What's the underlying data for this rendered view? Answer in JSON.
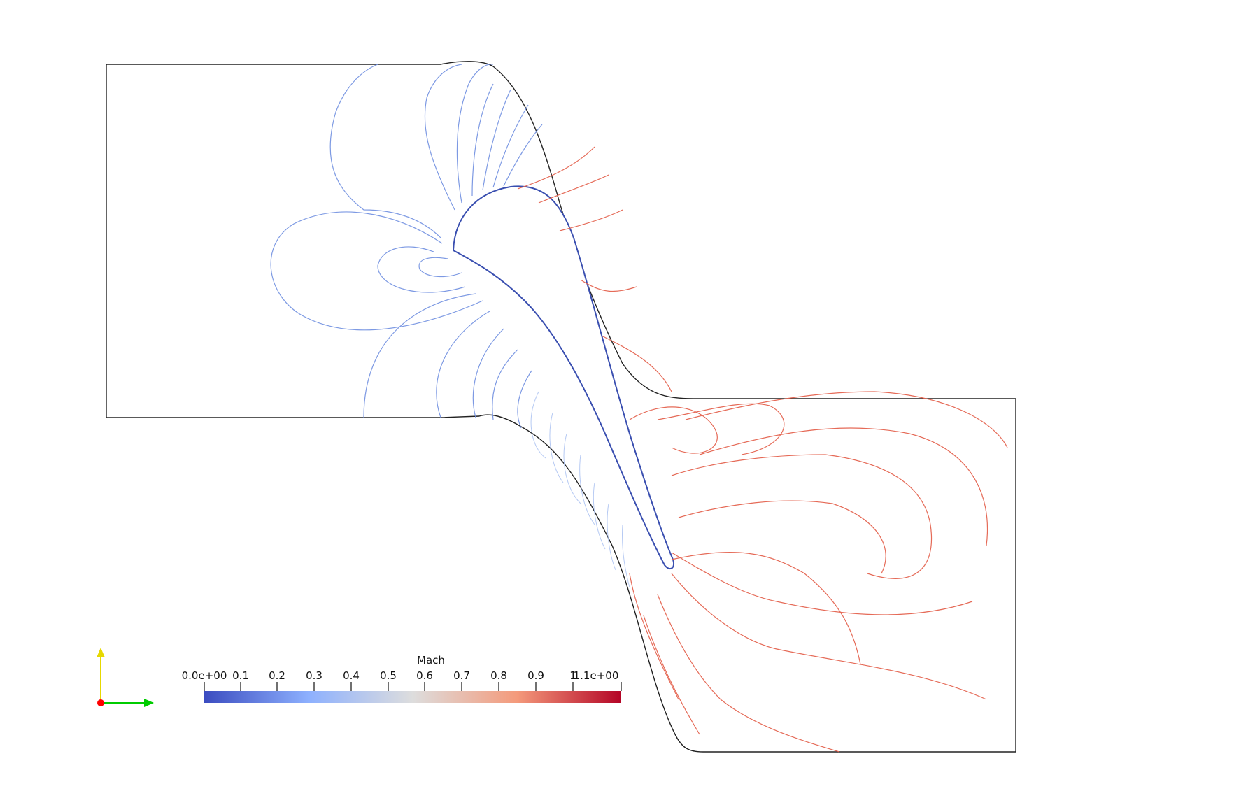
{
  "colorbar": {
    "title": "Mach",
    "tick_labels": [
      "0.0e+00",
      "0.1",
      "0.2",
      "0.3",
      "0.4",
      "0.5",
      "0.6",
      "0.7",
      "0.8",
      "0.9",
      "1",
      "1.1e+00"
    ],
    "range": [
      0.0,
      1.1
    ],
    "colors": {
      "low": "#3b4cc0",
      "mid": "#dddddd",
      "high": "#b40426"
    }
  },
  "orientation_axes": {
    "x_color": "#00cc00",
    "y_color": "#e6d800",
    "z_color": "#ff0000"
  }
}
